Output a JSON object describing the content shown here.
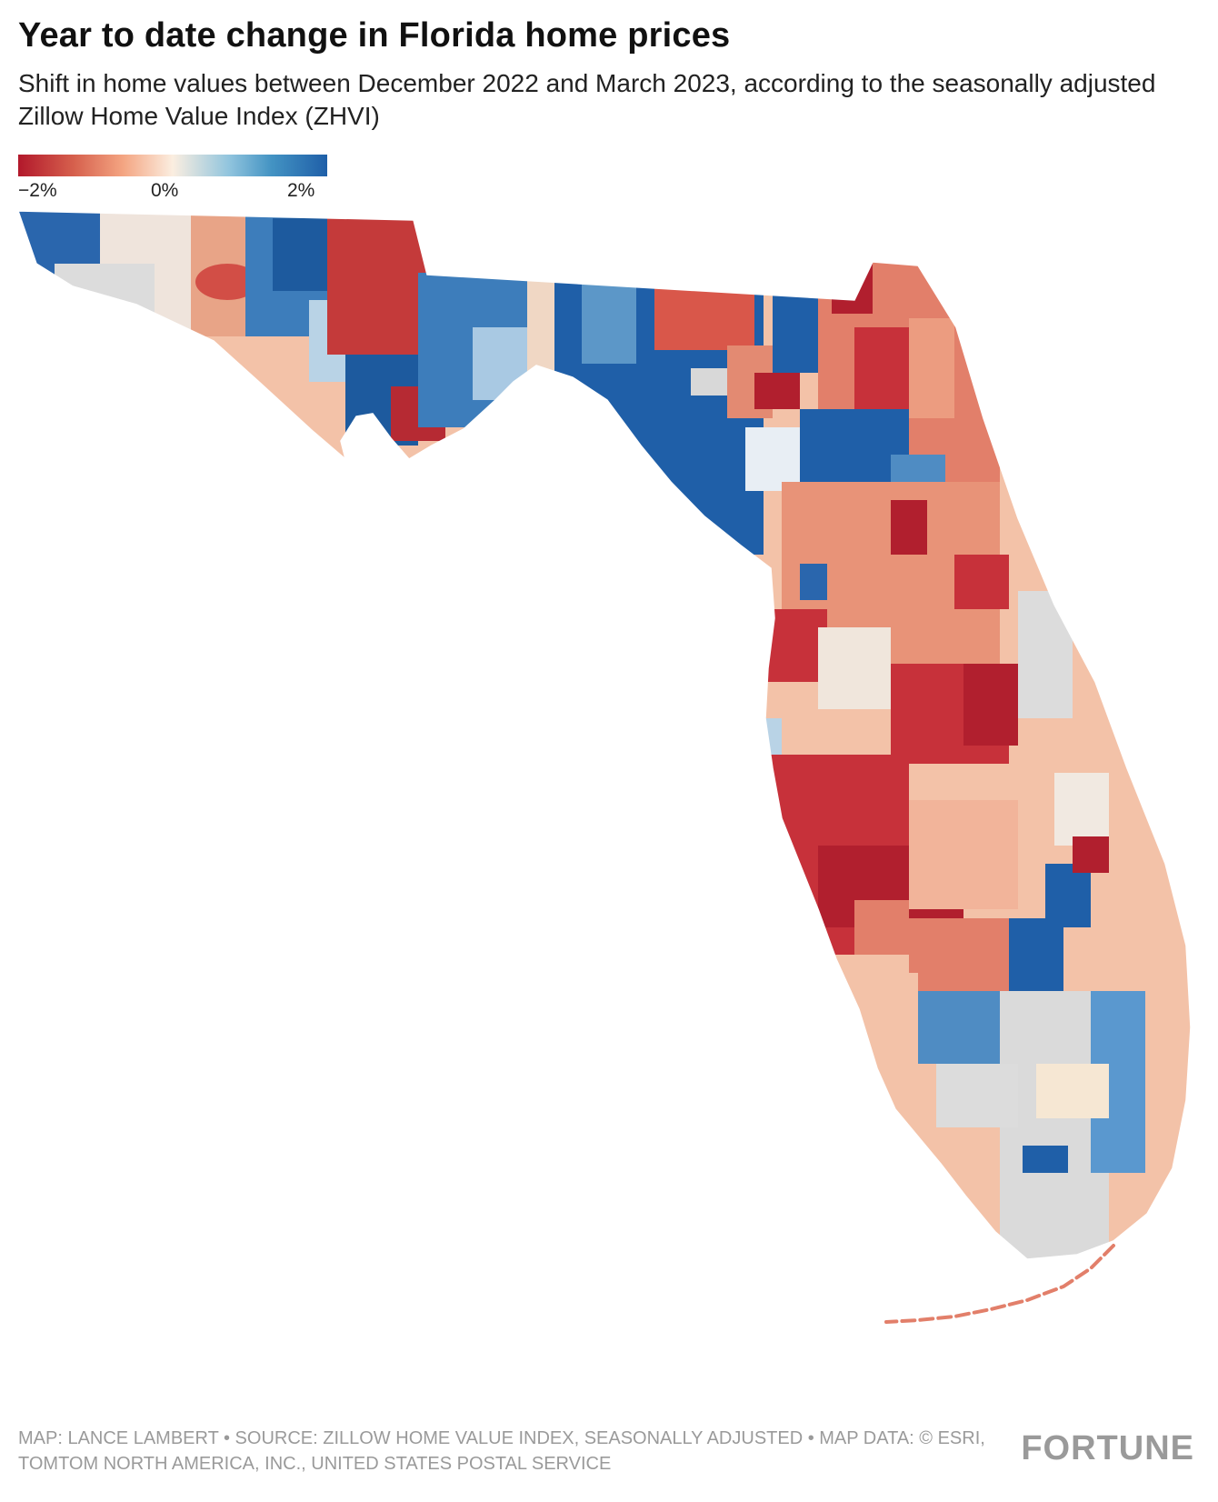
{
  "header": {
    "title": "Year to date change in Florida home prices",
    "subtitle": "Shift in home values between December 2022 and March 2023, according to the seasonally adjusted Zillow Home Value Index (ZHVI)"
  },
  "legend": {
    "ticks": [
      "−2%",
      "0%",
      "2%"
    ],
    "colors": {
      "low": "#b2182b",
      "mid": "#fbeee0",
      "high": "#1f5fa8",
      "no_data": "#d9d9d9"
    }
  },
  "footer": {
    "credits": "MAP: LANCE LAMBERT • SOURCE: ZILLOW HOME VALUE INDEX, SEASONALLY ADJUSTED • MAP DATA: © ESRI, TOMTOM NORTH AMERICA, INC., UNITED STATES POSTAL SERVICE",
    "brand": "FORTUNE"
  }
}
